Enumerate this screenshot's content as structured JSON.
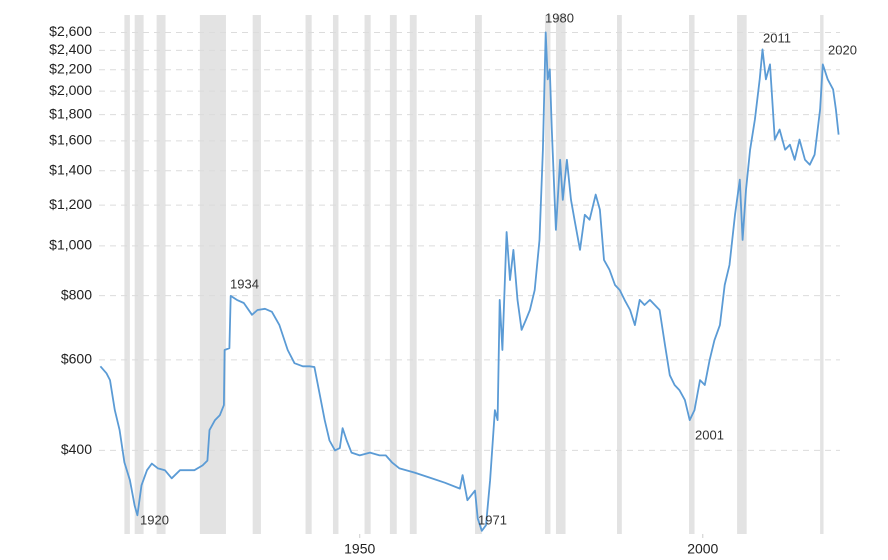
{
  "chart_data": {
    "type": "line",
    "log_scale_y": true,
    "grid": true,
    "color": "#5b9bd5",
    "recession_color": "#e3e3e3",
    "xlim": [
      1912,
      2020
    ],
    "xticks": [
      1950,
      2000
    ],
    "ylim": [
      275,
      2750
    ],
    "yticks": [
      {
        "value": 400,
        "label": "$400"
      },
      {
        "value": 600,
        "label": "$600"
      },
      {
        "value": 800,
        "label": "$800"
      },
      {
        "value": 1000,
        "label": "$1,000"
      },
      {
        "value": 1200,
        "label": "$1,200"
      },
      {
        "value": 1400,
        "label": "$1,400"
      },
      {
        "value": 1600,
        "label": "$1,600"
      },
      {
        "value": 1800,
        "label": "$1,800"
      },
      {
        "value": 2000,
        "label": "$2,000"
      },
      {
        "value": 2200,
        "label": "$2,200"
      },
      {
        "value": 2400,
        "label": "$2,400"
      },
      {
        "value": 2600,
        "label": "$2,600"
      }
    ],
    "recessions": [
      [
        1915.7,
        1916.5
      ],
      [
        1917.2,
        1918.5
      ],
      [
        1920.4,
        1921.7
      ],
      [
        1926.7,
        1930.5
      ],
      [
        1934.4,
        1935.6
      ],
      [
        1942.1,
        1943.0
      ],
      [
        1946.1,
        1946.9
      ],
      [
        1950.7,
        1951.6
      ],
      [
        1954.4,
        1955.4
      ],
      [
        1957.3,
        1958.3
      ],
      [
        1966.8,
        1967.8
      ],
      [
        1977.0,
        1977.8
      ],
      [
        1978.6,
        1980.0
      ],
      [
        1987.5,
        1988.2
      ],
      [
        1998.0,
        1998.8
      ],
      [
        2005.0,
        2006.4
      ],
      [
        2017.1,
        2017.6
      ]
    ],
    "annotations": [
      "1920",
      "1934",
      "1971",
      "1980",
      "2001",
      "2011",
      "2020"
    ],
    "x": [
      1912.2,
      1913.1,
      1913.6,
      1914.3,
      1915.0,
      1915.7,
      1916.5,
      1917.2,
      1917.6,
      1918.2,
      1919.0,
      1919.7,
      1920.6,
      1921.6,
      1922.6,
      1923.8,
      1924.8,
      1925.9,
      1927.1,
      1927.8,
      1928.1,
      1928.9,
      1929.6,
      1930.2,
      1930.3,
      1931.0,
      1931.2,
      1932.1,
      1933.1,
      1934.3,
      1935.1,
      1936.2,
      1937.2,
      1938.3,
      1939.5,
      1940.5,
      1941.7,
      1942.7,
      1943.4,
      1944.2,
      1944.9,
      1945.6,
      1946.4,
      1947.1,
      1947.5,
      1948.1,
      1948.8,
      1950.0,
      1951.5,
      1952.9,
      1953.8,
      1954.7,
      1955.8,
      1958.0,
      1960.2,
      1962.4,
      1964.6,
      1965.0,
      1965.7,
      1966.8,
      1967.2,
      1967.8,
      1968.4,
      1969.0,
      1969.7,
      1970.1,
      1970.4,
      1970.8,
      1971.4,
      1971.9,
      1972.4,
      1973.0,
      1973.6,
      1974.2,
      1974.8,
      1975.5,
      1976.2,
      1976.7,
      1977.1,
      1977.4,
      1977.7,
      1978.0,
      1978.6,
      1979.2,
      1979.6,
      1980.2,
      1980.8,
      1981.3,
      1982.1,
      1982.8,
      1983.5,
      1984.4,
      1985.0,
      1985.6,
      1986.4,
      1987.2,
      1987.9,
      1988.6,
      1989.4,
      1990.1,
      1990.8,
      1991.5,
      1992.3,
      1993.0,
      1993.7,
      1994.5,
      1995.2,
      1995.9,
      1996.6,
      1997.4,
      1998.1,
      1998.8,
      1999.6,
      2000.3,
      2001.0,
      2001.7,
      2002.5,
      2003.2,
      2003.9,
      2004.7,
      2005.4,
      2005.8,
      2006.3,
      2006.9,
      2007.6,
      2008.3,
      2008.7,
      2009.2,
      2009.8,
      2010.5,
      2011.2,
      2012.0,
      2012.7,
      2013.4,
      2014.1,
      2014.9,
      2015.6,
      2016.3,
      2017.1,
      2017.5,
      2018.2,
      2019.0,
      2019.4,
      2019.8
    ],
    "values": [
      583,
      565,
      548,
      479,
      438,
      379,
      350,
      312,
      299,
      342,
      366,
      377,
      369,
      366,
      353,
      366,
      366,
      366,
      374,
      382,
      438,
      458,
      468,
      490,
      627,
      632,
      799,
      785,
      774,
      734,
      750,
      754,
      744,
      701,
      627,
      591,
      583,
      583,
      581,
      512,
      458,
      418,
      400,
      404,
      442,
      418,
      396,
      391,
      396,
      391,
      391,
      379,
      369,
      362,
      354,
      346,
      337,
      358,
      320,
      334,
      295,
      279,
      286,
      350,
      479,
      458,
      785,
      627,
      1064,
      858,
      982,
      785,
      686,
      717,
      750,
      820,
      1027,
      1538,
      2601,
      2108,
      2204,
      1684,
      1074,
      1470,
      1229,
      1470,
      1229,
      1124,
      982,
      1149,
      1124,
      1258,
      1175,
      939,
      898,
      839,
      820,
      785,
      750,
      701,
      785,
      767,
      785,
      767,
      750,
      641,
      560,
      536,
      524,
      501,
      458,
      479,
      548,
      536,
      599,
      655,
      701,
      839,
      918,
      1149,
      1345,
      1027,
      1286,
      1538,
      1761,
      2108,
      2411,
      2108,
      2254,
      1609,
      1684,
      1538,
      1573,
      1470,
      1609,
      1470,
      1438,
      1504,
      1842,
      2254,
      2108,
      2015,
      1842,
      1646
    ]
  }
}
